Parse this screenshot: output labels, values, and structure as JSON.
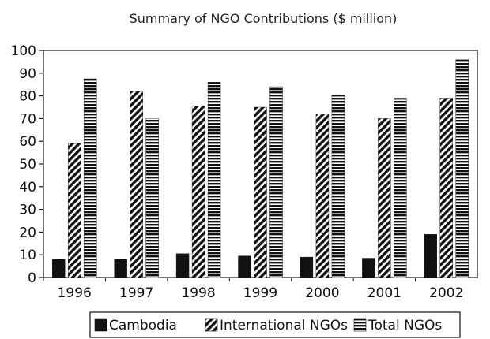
{
  "chart_data": {
    "type": "bar",
    "title": "Summary of NGO Contributions ($ million)",
    "xlabel": "",
    "ylabel": "",
    "categories": [
      "1996",
      "1997",
      "1998",
      "1999",
      "2000",
      "2001",
      "2002"
    ],
    "ylim": [
      0,
      100
    ],
    "yticks": [
      0,
      10,
      20,
      30,
      40,
      50,
      60,
      70,
      80,
      90,
      100
    ],
    "grid": false,
    "legend_position": "bottom",
    "series": [
      {
        "name": "Cambodia",
        "values": [
          8,
          8,
          10.5,
          9.5,
          9,
          8.5,
          19
        ],
        "color": "#111111",
        "pattern": "solid"
      },
      {
        "name": "International NGOs",
        "values": [
          59,
          82,
          75.5,
          75,
          72,
          70,
          79
        ],
        "color": "#111111",
        "pattern": "diagonal"
      },
      {
        "name": "Total NGOs",
        "values": [
          87.5,
          70,
          86,
          84,
          80.5,
          79,
          96
        ],
        "color": "#111111",
        "pattern": "horizontal"
      }
    ]
  }
}
